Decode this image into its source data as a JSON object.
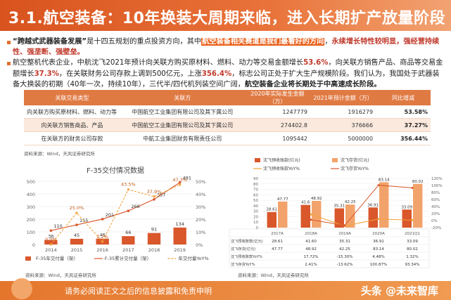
{
  "header": {
    "title": "3.1.航空装备：10年换装大周期来临，进入长期扩产放量阶段"
  },
  "intro": {
    "p1_lead": "“跨越式武器装备发展”",
    "p1_a": "是十四五规划的重点投资方向，其中",
    "p1_hl1": "航空装备相关赛道是我们最看好的方向",
    "p1_b": "，",
    "p1_hl2": "永续增长特性较明显，强经营持续性、强垄断、强壁垒。",
    "p2_a": "航空整机代表企业，中航沈飞2021年预计向关联方购买原材料、燃料、动力等交易金额增长",
    "p2_v1": "53.6%",
    "p2_b": "，向关联方销售产品、商品等交易金额增长",
    "p2_v2": "37.3%",
    "p2_c": "，在关联财务公司存款上调到500亿元，上涨",
    "p2_v3": "356.4%",
    "p2_d": "，标志公司正处于扩大生产规模阶段。我们认为，我国处于武器装备大换装的初期（40年一次，持续10年），三代半/四代机列装空间广阔，",
    "p2_hl": "航空装备企业将长期处于中高速成长阶段。"
  },
  "table": {
    "headers": [
      "关联交易类型",
      "关联方",
      "2020年实际发生金额（万）",
      "2021年预计金额（万）",
      "同比增减"
    ],
    "rows": [
      [
        "向关联方购买原材料、燃料、动力等",
        "中国航空工业集团有限公司及其下属公司",
        "1247779",
        "1916279",
        "53.58%"
      ],
      [
        "向关联方销售商品、产品",
        "中国航空工业集团有限公司及其下属公司",
        "274402.8",
        "376666",
        "37.27%"
      ],
      [
        "在关联方的财务公司存款",
        "中航工业集团财务有限责任公司",
        "1095442",
        "5000000",
        "356.44%"
      ]
    ],
    "source": "资料来源：Wind，天风证券研究所"
  },
  "chart_data": [
    {
      "type": "bar",
      "title": "F-35交付情况数据",
      "categories": [
        "2014",
        "2015",
        "2016",
        "2017",
        "2018",
        "2019"
      ],
      "ylim": [
        0,
        500
      ],
      "y2lim": [
        0,
        50
      ],
      "yticks": [
        "0",
        "100",
        "200",
        "300",
        "400",
        "500"
      ],
      "y2ticks": [
        "0%",
        "10%",
        "20%",
        "30%",
        "40%",
        "50%"
      ],
      "series": [
        {
          "name": "F-35年交付量（架）",
          "kind": "bar",
          "color": "#d9572b",
          "values": [
            36,
            45,
            46,
            66,
            91,
            134
          ]
        },
        {
          "name": "F-35累计交付量（架）",
          "kind": "line",
          "color": "#d9572b",
          "values": [
            110,
            155,
            201,
            266,
            357,
            491
          ]
        },
        {
          "name": "年交付量YoY%",
          "kind": "line",
          "axis": "y2",
          "color": "#f2a33a",
          "values": [
            0,
            25.0,
            2.2,
            43.5,
            37.9,
            47.3
          ],
          "labels": [
            "0.0%",
            "25.0%",
            "2.2%",
            "43.5%",
            "37.9%",
            "47.3%"
          ]
        }
      ],
      "bar_labels": [
        "36",
        "45",
        "46",
        "66",
        "91",
        "134"
      ],
      "cum_labels": [
        "110",
        "155",
        "201",
        "266",
        "357",
        "491"
      ],
      "source": "资料来源：Wind，天风证券研究所"
    },
    {
      "type": "bar",
      "title": "",
      "categories": [
        "2017A",
        "2018A",
        "2019A",
        "2020A",
        "2021Q1"
      ],
      "ylim": [
        0,
        90
      ],
      "y2lim": [
        -20,
        120
      ],
      "yticks": [
        "0",
        "10",
        "20",
        "30",
        "40",
        "50",
        "60",
        "70",
        "80",
        "90"
      ],
      "y2ticks": [
        "-20%",
        "0%",
        "20%",
        "40%",
        "60%",
        "80%",
        "100%",
        "120%"
      ],
      "series": [
        {
          "name": "沈飞预收账款(亿元)",
          "kind": "bar",
          "color": "#d9572b",
          "values": [
            28.61,
            41.6,
            35.31,
            36.91,
            33.09
          ]
        },
        {
          "name": "沈飞存货(亿元)",
          "kind": "bar",
          "color": "#f2a36b",
          "values": [
            47.77,
            48.92,
            42.25,
            83.14,
            80.02
          ]
        },
        {
          "name": "沈飞预收账款YoY%",
          "kind": "line",
          "axis": "y2",
          "color": "#f2a33a",
          "values": [
            null,
            17.72,
            -15.3,
            4.48,
            1.32
          ]
        },
        {
          "name": "沈飞存货YoY%",
          "kind": "line",
          "axis": "y2",
          "color": "#d9572b",
          "values": [
            null,
            2.41,
            -13.62,
            100.87,
            93.34
          ]
        }
      ],
      "table_rows": [
        {
          "name": "沈飞预收账款(亿元)",
          "cells": [
            "28.61",
            "41.60",
            "35.31",
            "36.91",
            "33.09"
          ]
        },
        {
          "name": "沈飞存货(亿元)",
          "cells": [
            "47.77",
            "48.92",
            "42.25",
            "83.14",
            "80.02"
          ]
        },
        {
          "name": "沈飞预收账款YoY%",
          "cells": [
            "",
            "17.72%",
            "-15.30%",
            "4.48%",
            "1.32%"
          ]
        },
        {
          "name": "沈飞存货YoY%",
          "cells": [
            "",
            "2.41%",
            "-13.62%",
            "100.87%",
            "93.34%"
          ]
        }
      ],
      "bar_labels_a": [
        "28.61",
        "41.6",
        "35.31",
        "36.91",
        "33.09"
      ],
      "bar_labels_b": [
        "47.77",
        "48.92",
        "42.25",
        "83.14",
        "80.02"
      ],
      "source": "资料来源：Wind，天风证券研究所"
    }
  ],
  "footer": {
    "text": "请务必阅读正文之后的信息披露和免责申明",
    "watermark": "头条 @未来智库"
  }
}
